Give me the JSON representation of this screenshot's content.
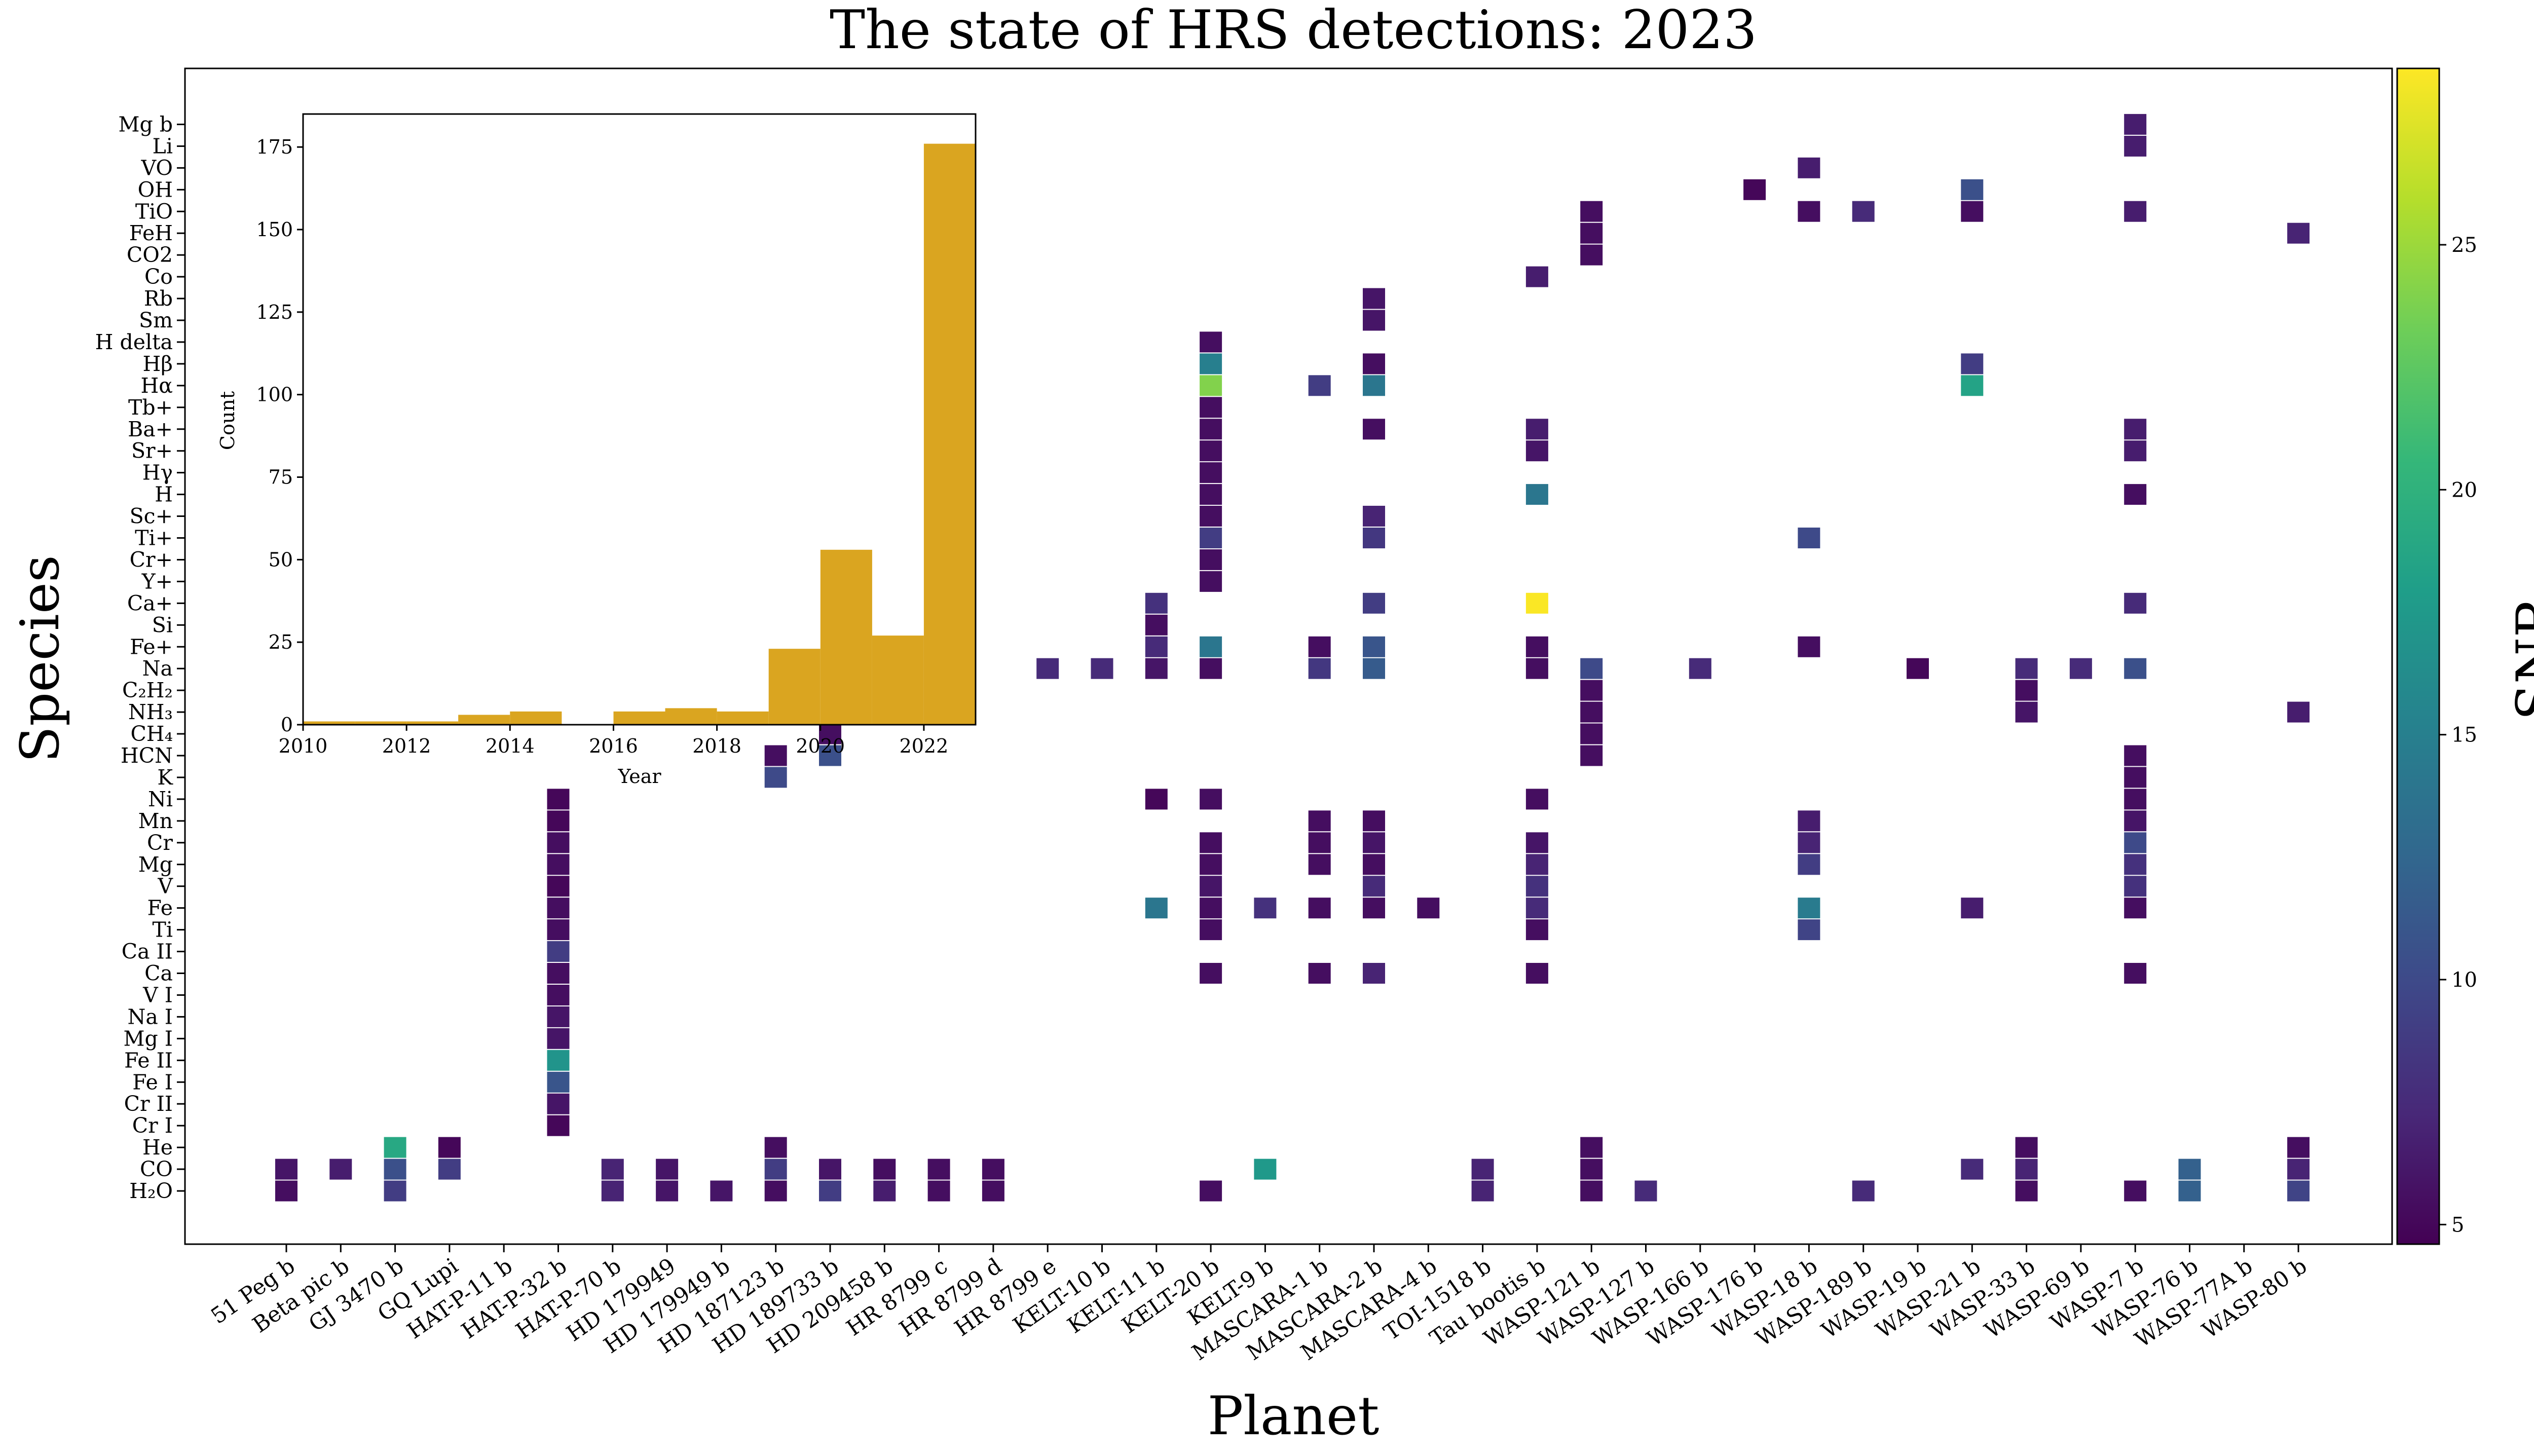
{
  "chart_data": {
    "type": "heatmap",
    "title": "The state of HRS detections: 2023",
    "xlabel": "Planet",
    "ylabel": "Species",
    "colorbar": {
      "label": "SNR",
      "colormap": "viridis",
      "range": [
        4.6,
        28.6
      ],
      "ticks": [
        "5",
        "10",
        "15",
        "20",
        "25"
      ],
      "stops": [
        "#440154",
        "#482878",
        "#3e4989",
        "#31688e",
        "#26828e",
        "#1f9e89",
        "#35b779",
        "#6ece58",
        "#b5de2b",
        "#fde725"
      ]
    },
    "planets": [
      "51 Peg b",
      "Beta pic b",
      "GJ 3470 b",
      "GQ Lupi",
      "HAT-P-11 b",
      "HAT-P-32 b",
      "HAT-P-70 b",
      "HD 179949",
      "HD 179949 b",
      "HD 187123 b",
      "HD 189733 b",
      "HD 209458 b",
      "HR 8799 c",
      "HR 8799 d",
      "HR 8799 e",
      "KELT-10 b",
      "KELT-11 b",
      "KELT-20 b",
      "KELT-9 b",
      "MASCARA-1 b",
      "MASCARA-2 b",
      "MASCARA-4 b",
      "TOI-1518 b",
      "Tau bootis b",
      "WASP-121 b",
      "WASP-127 b",
      "WASP-166 b",
      "WASP-176 b",
      "WASP-18 b",
      "WASP-189 b",
      "WASP-19 b",
      "WASP-21 b",
      "WASP-33 b",
      "WASP-69 b",
      "WASP-7 b",
      "WASP-76 b",
      "WASP-77A b",
      "WASP-80 b"
    ],
    "species": [
      "H₂O",
      "CO",
      "He",
      "Cr I",
      "Cr II",
      "Fe I",
      "Fe II",
      "Mg I",
      "Na I",
      "V I",
      "Ca",
      "Ca II",
      "Ti",
      "Fe",
      "V",
      "Mg",
      "Cr",
      "Mn",
      "Ni",
      "K",
      "HCN",
      "CH₄",
      "NH₃",
      "C₂H₂",
      "Na",
      "Fe+",
      "Si",
      "Ca+",
      "Y+",
      "Cr+",
      "Ti+",
      "Sc+",
      "H",
      "Hγ",
      "Sr+",
      "Ba+",
      "Tb+",
      "Hα",
      "Hβ",
      "H delta",
      "Sm",
      "Rb",
      "Co",
      "CO2",
      "FeH",
      "TiO",
      "OH",
      "VO",
      "Li",
      "Mg b"
    ],
    "cells": [
      [
        0,
        0,
        5.5
      ],
      [
        0,
        1,
        6
      ],
      [
        1,
        1,
        6.5
      ],
      [
        2,
        2,
        19
      ],
      [
        2,
        0,
        9
      ],
      [
        2,
        1,
        10.5
      ],
      [
        3,
        2,
        5
      ],
      [
        3,
        1,
        9
      ],
      [
        5,
        3,
        5
      ],
      [
        5,
        4,
        6
      ],
      [
        5,
        5,
        11
      ],
      [
        5,
        6,
        17
      ],
      [
        5,
        7,
        6
      ],
      [
        5,
        8,
        6
      ],
      [
        5,
        9,
        5.5
      ],
      [
        5,
        10,
        5.5
      ],
      [
        5,
        11,
        9
      ],
      [
        5,
        12,
        5.5
      ],
      [
        5,
        13,
        5.5
      ],
      [
        5,
        14,
        5
      ],
      [
        5,
        15,
        5.5
      ],
      [
        5,
        16,
        5.5
      ],
      [
        5,
        17,
        5
      ],
      [
        5,
        18,
        5
      ],
      [
        6,
        0,
        7
      ],
      [
        6,
        1,
        7
      ],
      [
        7,
        0,
        6
      ],
      [
        7,
        1,
        6
      ],
      [
        8,
        0,
        6
      ],
      [
        9,
        0,
        5.5
      ],
      [
        9,
        1,
        9
      ],
      [
        9,
        2,
        5.5
      ],
      [
        9,
        19,
        10
      ],
      [
        9,
        20,
        5.5
      ],
      [
        10,
        0,
        9
      ],
      [
        10,
        1,
        6
      ],
      [
        10,
        20,
        10.5
      ],
      [
        10,
        21,
        5.5
      ],
      [
        11,
        0,
        6.5
      ],
      [
        11,
        1,
        5.5
      ],
      [
        12,
        0,
        5.5
      ],
      [
        12,
        1,
        5.5
      ],
      [
        13,
        0,
        5.5
      ],
      [
        13,
        1,
        5.5
      ],
      [
        14,
        24,
        7.5
      ],
      [
        15,
        24,
        7.5
      ],
      [
        16,
        13,
        14
      ],
      [
        16,
        18,
        5
      ],
      [
        16,
        24,
        6
      ],
      [
        16,
        25,
        7.5
      ],
      [
        16,
        26,
        5.5
      ],
      [
        16,
        27,
        8
      ],
      [
        17,
        0,
        5.5
      ],
      [
        17,
        10,
        5.5
      ],
      [
        17,
        12,
        5.5
      ],
      [
        17,
        13,
        5.5
      ],
      [
        17,
        14,
        6
      ],
      [
        17,
        15,
        5.5
      ],
      [
        17,
        16,
        5.5
      ],
      [
        17,
        18,
        5.5
      ],
      [
        17,
        24,
        5.5
      ],
      [
        17,
        25,
        14
      ],
      [
        17,
        28,
        5.5
      ],
      [
        17,
        29,
        5.5
      ],
      [
        17,
        30,
        9
      ],
      [
        17,
        31,
        5.5
      ],
      [
        17,
        32,
        5.5
      ],
      [
        17,
        33,
        5.5
      ],
      [
        17,
        34,
        5.5
      ],
      [
        17,
        35,
        5.5
      ],
      [
        17,
        36,
        5.5
      ],
      [
        17,
        37,
        24
      ],
      [
        17,
        38,
        15
      ],
      [
        17,
        39,
        5.5
      ],
      [
        18,
        1,
        17.5
      ],
      [
        18,
        13,
        8
      ],
      [
        19,
        10,
        5.5
      ],
      [
        19,
        13,
        5.5
      ],
      [
        19,
        15,
        5.5
      ],
      [
        19,
        16,
        5.5
      ],
      [
        19,
        17,
        5.5
      ],
      [
        19,
        24,
        8.5
      ],
      [
        19,
        25,
        5.5
      ],
      [
        19,
        37,
        9
      ],
      [
        20,
        10,
        7
      ],
      [
        20,
        13,
        5.5
      ],
      [
        20,
        14,
        7.5
      ],
      [
        20,
        15,
        5.5
      ],
      [
        20,
        16,
        6
      ],
      [
        20,
        17,
        5.5
      ],
      [
        20,
        24,
        11.5
      ],
      [
        20,
        25,
        11
      ],
      [
        20,
        27,
        9
      ],
      [
        20,
        30,
        8.5
      ],
      [
        20,
        31,
        7
      ],
      [
        20,
        35,
        5.5
      ],
      [
        20,
        37,
        14
      ],
      [
        20,
        38,
        5.5
      ],
      [
        20,
        40,
        6
      ],
      [
        20,
        41,
        6
      ],
      [
        21,
        13,
        5.5
      ],
      [
        22,
        0,
        7
      ],
      [
        22,
        1,
        7
      ],
      [
        23,
        10,
        5.5
      ],
      [
        23,
        12,
        5.5
      ],
      [
        23,
        13,
        7.5
      ],
      [
        23,
        14,
        8
      ],
      [
        23,
        15,
        7
      ],
      [
        23,
        16,
        6
      ],
      [
        23,
        18,
        5.5
      ],
      [
        23,
        24,
        5.5
      ],
      [
        23,
        25,
        5.5
      ],
      [
        23,
        27,
        28.5
      ],
      [
        23,
        32,
        14
      ],
      [
        23,
        34,
        6
      ],
      [
        23,
        35,
        6.5
      ],
      [
        23,
        42,
        6.5
      ],
      [
        24,
        0,
        5.5
      ],
      [
        24,
        1,
        5.5
      ],
      [
        24,
        2,
        5.5
      ],
      [
        24,
        20,
        5.5
      ],
      [
        24,
        21,
        5.5
      ],
      [
        24,
        22,
        5.5
      ],
      [
        24,
        23,
        5.5
      ],
      [
        24,
        24,
        10
      ],
      [
        24,
        43,
        5.5
      ],
      [
        24,
        44,
        5.5
      ],
      [
        24,
        45,
        5.5
      ],
      [
        25,
        0,
        7.5
      ],
      [
        26,
        24,
        7.5
      ],
      [
        27,
        46,
        5
      ],
      [
        28,
        13,
        14.5
      ],
      [
        28,
        12,
        9.5
      ],
      [
        28,
        15,
        9
      ],
      [
        28,
        16,
        7
      ],
      [
        28,
        17,
        6.5
      ],
      [
        28,
        25,
        5.5
      ],
      [
        28,
        30,
        10
      ],
      [
        28,
        45,
        5.5
      ],
      [
        28,
        47,
        6.5
      ],
      [
        29,
        0,
        7.5
      ],
      [
        29,
        45,
        7.5
      ],
      [
        30,
        24,
        5
      ],
      [
        31,
        1,
        7.5
      ],
      [
        31,
        13,
        6.5
      ],
      [
        31,
        37,
        18.5
      ],
      [
        31,
        38,
        9
      ],
      [
        31,
        45,
        5.5
      ],
      [
        31,
        46,
        10.5
      ],
      [
        32,
        0,
        5.5
      ],
      [
        32,
        1,
        7
      ],
      [
        32,
        2,
        5.5
      ],
      [
        32,
        22,
        6
      ],
      [
        32,
        23,
        5.5
      ],
      [
        32,
        24,
        7.5
      ],
      [
        33,
        24,
        7.5
      ],
      [
        34,
        0,
        5.5
      ],
      [
        34,
        10,
        5.5
      ],
      [
        34,
        13,
        5.5
      ],
      [
        34,
        14,
        8
      ],
      [
        34,
        15,
        8
      ],
      [
        34,
        16,
        10
      ],
      [
        34,
        17,
        6
      ],
      [
        34,
        18,
        5.5
      ],
      [
        34,
        19,
        5.5
      ],
      [
        34,
        20,
        5.5
      ],
      [
        34,
        24,
        10.5
      ],
      [
        34,
        27,
        7.5
      ],
      [
        34,
        32,
        5.5
      ],
      [
        34,
        34,
        6.5
      ],
      [
        34,
        35,
        6.5
      ],
      [
        34,
        45,
        6.5
      ],
      [
        34,
        48,
        6.5
      ],
      [
        34,
        49,
        6.5
      ],
      [
        35,
        0,
        12
      ],
      [
        35,
        1,
        12
      ],
      [
        37,
        0,
        9.5
      ],
      [
        37,
        1,
        7
      ],
      [
        37,
        2,
        5.5
      ],
      [
        37,
        22,
        6.5
      ],
      [
        37,
        44,
        7
      ]
    ],
    "inset": {
      "type": "bar",
      "xlabel": "Year",
      "ylabel": "Count",
      "color": "#daa520",
      "xlim": [
        2010,
        2023
      ],
      "ylim": [
        0,
        185
      ],
      "xticks": [
        "2010",
        "2012",
        "2014",
        "2016",
        "2018",
        "2020",
        "2022"
      ],
      "yticks": [
        "0",
        "25",
        "50",
        "75",
        "100",
        "125",
        "150",
        "175"
      ],
      "bins": [
        {
          "start": 2010,
          "end": 2011,
          "count": 1
        },
        {
          "start": 2011,
          "end": 2012,
          "count": 1
        },
        {
          "start": 2012,
          "end": 2013,
          "count": 1
        },
        {
          "start": 2013,
          "end": 2014,
          "count": 3
        },
        {
          "start": 2014,
          "end": 2015,
          "count": 4
        },
        {
          "start": 2015,
          "end": 2016,
          "count": 0
        },
        {
          "start": 2016,
          "end": 2017,
          "count": 4
        },
        {
          "start": 2017,
          "end": 2018,
          "count": 5
        },
        {
          "start": 2018,
          "end": 2019,
          "count": 4
        },
        {
          "start": 2019,
          "end": 2020,
          "count": 23
        },
        {
          "start": 2020,
          "end": 2021,
          "count": 53
        },
        {
          "start": 2021,
          "end": 2022,
          "count": 27
        },
        {
          "start": 2022,
          "end": 2023,
          "count": 176
        }
      ]
    }
  }
}
